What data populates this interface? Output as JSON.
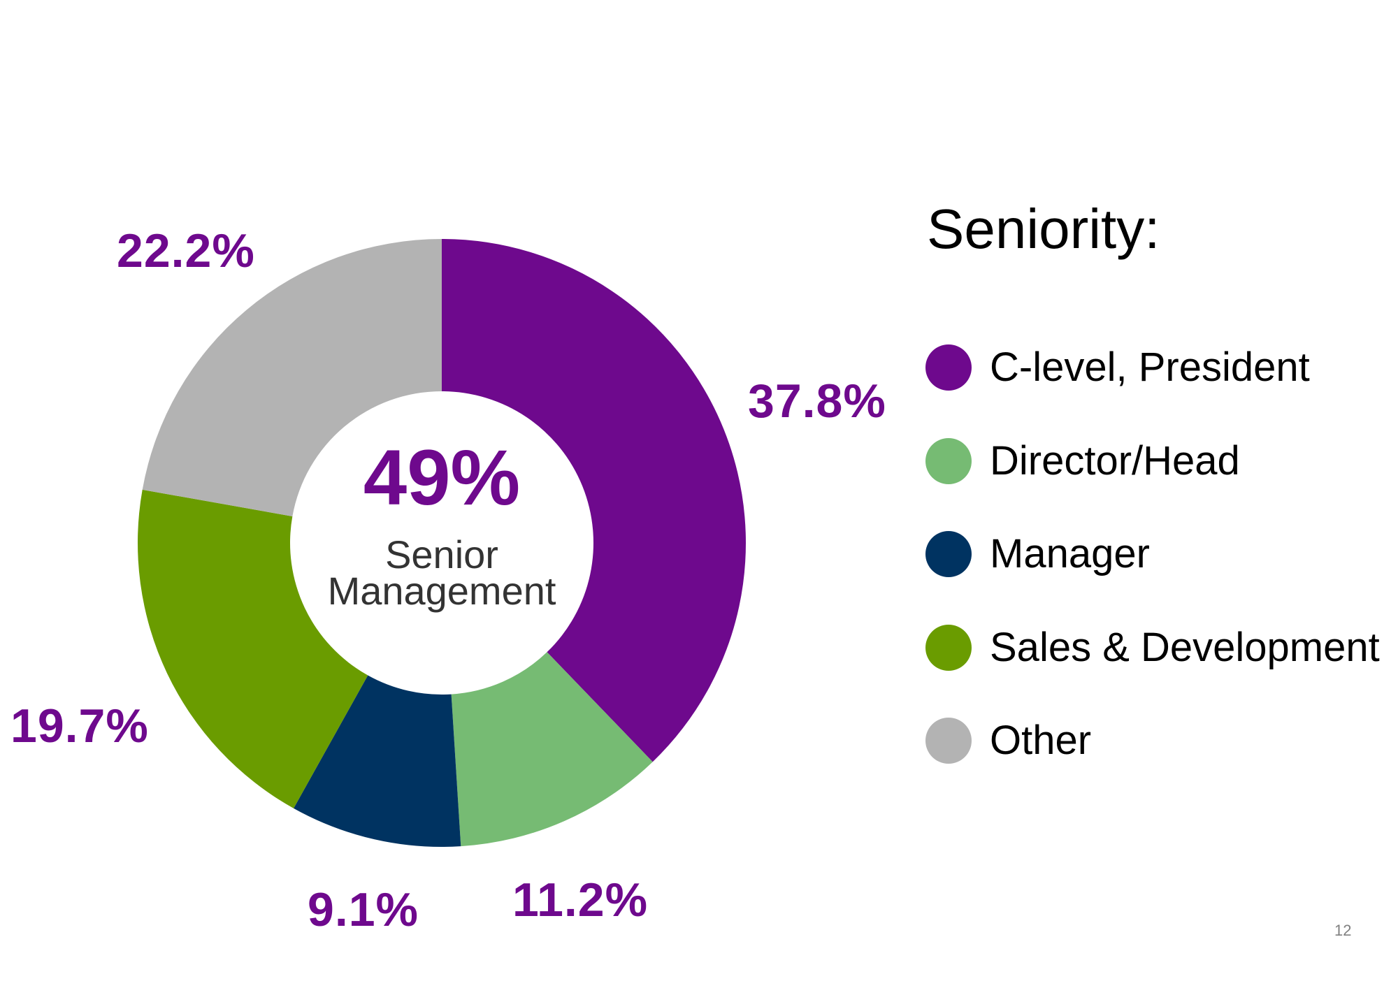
{
  "chart_data": {
    "type": "pie",
    "variant": "donut",
    "title": "Seniority:",
    "categories": [
      "C-level, President",
      "Director/Head",
      "Manager",
      "Sales & Development",
      "Other"
    ],
    "values": [
      37.8,
      11.2,
      9.1,
      19.7,
      22.2
    ],
    "value_labels": [
      "37.8%",
      "11.2%",
      "9.1%",
      "19.7%",
      "22.2%"
    ],
    "colors": [
      "#6E098D",
      "#76BB73",
      "#003361",
      "#6A9C00",
      "#B3B3B3"
    ],
    "start_angle_deg": 0,
    "direction": "clockwise",
    "center_value": "49%",
    "center_caption_line1": "Senior",
    "center_caption_line2": "Management",
    "legend_position": "right"
  },
  "page_number": "12"
}
